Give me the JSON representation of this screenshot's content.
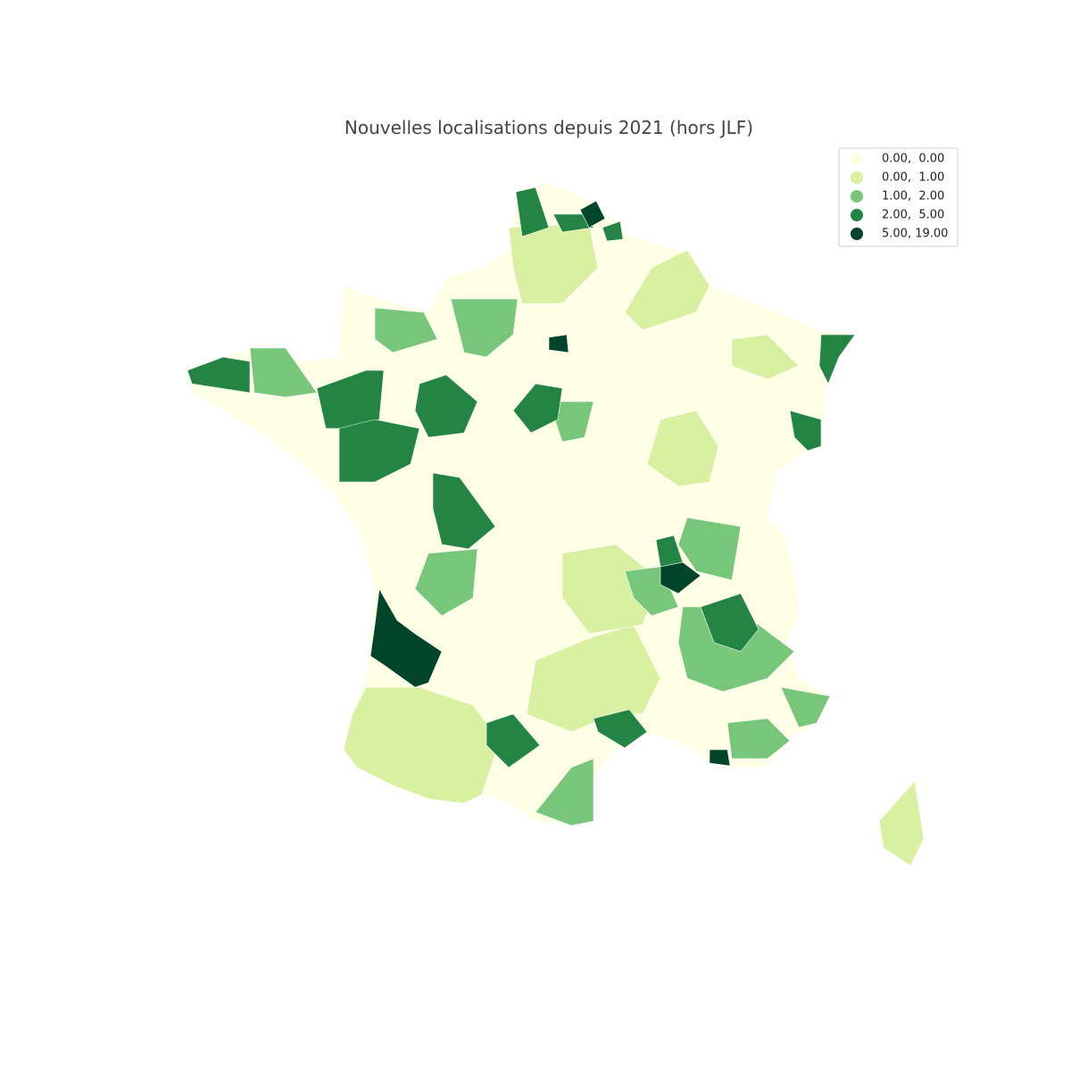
{
  "title": "Nouvelles localisations depuis 2021 (hors JLF)",
  "legend": {
    "items": [
      {
        "label": "0.00,  0.00",
        "color": "#ffffe5"
      },
      {
        "label": "0.00,  1.00",
        "color": "#d9f0a3"
      },
      {
        "label": "1.00,  2.00",
        "color": "#78c679"
      },
      {
        "label": "2.00,  5.00",
        "color": "#238443"
      },
      {
        "label": "5.00, 19.00",
        "color": "#004529"
      }
    ]
  }
}
